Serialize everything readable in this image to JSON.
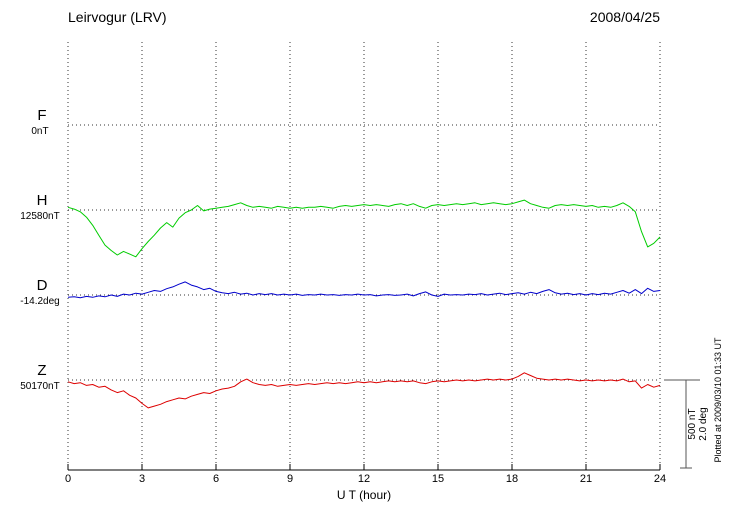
{
  "header": {
    "title": "Leirvogur (LRV)",
    "date": "2008/04/25"
  },
  "footer": {
    "plotted_at": "Plotted at 2009/03/10 01:33 UT"
  },
  "scale_bar": {
    "labels": [
      "500 nT",
      "2.0 deg"
    ]
  },
  "chart_data": {
    "type": "line",
    "station": "Leirvogur (LRV)",
    "date": "2008/04/25",
    "xlabel": "U T (hour)",
    "x_axis": {
      "min": 0,
      "max": 24,
      "ticks": [
        0,
        3,
        6,
        9,
        12,
        15,
        18,
        21,
        24
      ]
    },
    "x_step_hours": 0.25,
    "scale": {
      "bar_nT": 500,
      "bar_deg": 2.0
    },
    "grid": "dotted",
    "legend_position": "left",
    "series": [
      {
        "name": "F",
        "unit": "nT",
        "color": "#ffa500",
        "baseline_label": "0nT",
        "baseline_value": 0,
        "delta_values": []
      },
      {
        "name": "H",
        "unit": "nT",
        "color": "#00cc00",
        "baseline_label": "12580nT",
        "baseline_value": 12580,
        "delta_values": [
          15,
          5,
          -10,
          -40,
          -85,
          -140,
          -195,
          -225,
          -250,
          -230,
          -245,
          -260,
          -215,
          -175,
          -140,
          -100,
          -70,
          -95,
          -45,
          -15,
          0,
          25,
          -5,
          5,
          10,
          15,
          20,
          30,
          40,
          25,
          15,
          20,
          15,
          10,
          20,
          15,
          10,
          15,
          10,
          15,
          15,
          20,
          15,
          10,
          20,
          25,
          20,
          25,
          30,
          25,
          30,
          25,
          20,
          30,
          35,
          25,
          35,
          20,
          10,
          25,
          30,
          25,
          30,
          35,
          30,
          35,
          40,
          30,
          35,
          40,
          35,
          30,
          35,
          45,
          55,
          35,
          25,
          15,
          10,
          25,
          30,
          25,
          30,
          25,
          20,
          25,
          15,
          20,
          15,
          25,
          40,
          20,
          -10,
          -120,
          -205,
          -185,
          -150
        ]
      },
      {
        "name": "D",
        "unit": "deg",
        "color": "#0000cc",
        "baseline_label": "-14.2deg",
        "baseline_value": -14.2,
        "delta_values": [
          -0.05,
          -0.04,
          -0.06,
          -0.03,
          -0.05,
          -0.02,
          -0.04,
          0,
          -0.03,
          0.02,
          0,
          0.04,
          0.02,
          0.06,
          0.1,
          0.08,
          0.14,
          0.18,
          0.24,
          0.29,
          0.22,
          0.18,
          0.12,
          0.15,
          0.08,
          0.05,
          0.03,
          0.06,
          0.02,
          0.04,
          0,
          0.03,
          0.01,
          0.03,
          0,
          0.02,
          0,
          0.02,
          -0.01,
          0.01,
          0,
          0.02,
          0,
          0.01,
          -0.01,
          0.01,
          0,
          0.02,
          0,
          0.01,
          -0.02,
          0,
          0.01,
          -0.01,
          0,
          0.02,
          -0.02,
          0.03,
          0.07,
          0,
          -0.03,
          0.02,
          0,
          0.01,
          0,
          0.02,
          0.01,
          0.03,
          0,
          0.02,
          0.04,
          0.01,
          0.03,
          0.05,
          0.02,
          0.06,
          0.03,
          0.08,
          0.12,
          0.05,
          0.02,
          0.04,
          0.01,
          0.03,
          0,
          0.03,
          0.01,
          0.04,
          0.02,
          0.06,
          0.1,
          0.04,
          0.12,
          0.03,
          0.15,
          0.08,
          0.1
        ]
      },
      {
        "name": "Z",
        "unit": "nT",
        "color": "#dd0000",
        "baseline_label": "50170nT",
        "baseline_value": 50170,
        "delta_values": [
          -10,
          -20,
          -15,
          -30,
          -25,
          -40,
          -35,
          -55,
          -70,
          -60,
          -85,
          -100,
          -130,
          -155,
          -145,
          -135,
          -120,
          -110,
          -100,
          -105,
          -90,
          -80,
          -70,
          -75,
          -60,
          -50,
          -45,
          -35,
          -10,
          5,
          -15,
          -25,
          -30,
          -25,
          -35,
          -30,
          -25,
          -30,
          -25,
          -20,
          -25,
          -20,
          -15,
          -20,
          -15,
          -20,
          -15,
          -10,
          -15,
          -10,
          -15,
          -10,
          -5,
          -10,
          -5,
          -10,
          -5,
          -15,
          -20,
          -10,
          -5,
          -10,
          -5,
          0,
          -5,
          0,
          -5,
          0,
          5,
          0,
          5,
          0,
          5,
          20,
          40,
          25,
          10,
          5,
          0,
          5,
          0,
          5,
          0,
          -5,
          0,
          -5,
          0,
          -5,
          0,
          -5,
          5,
          -10,
          -5,
          -45,
          -25,
          -40,
          -30
        ]
      }
    ]
  }
}
